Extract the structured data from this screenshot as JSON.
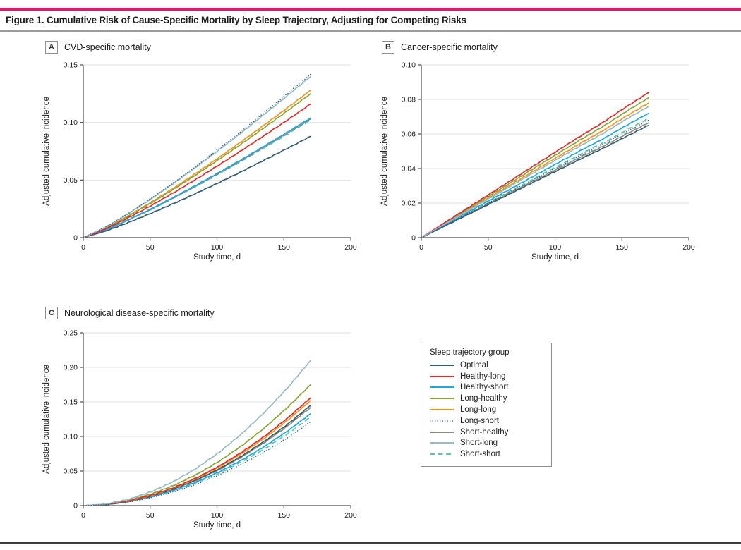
{
  "figure": {
    "title": "Figure 1. Cumulative Risk of Cause-Specific Mortality by Sleep Trajectory, Adjusting for Competing Risks",
    "accent_color": "#e7156e",
    "top_rule_color": "#e7156e",
    "mid_rule_color": "#9b9b9b",
    "bottom_rule_color": "#3c3c3c"
  },
  "legend": {
    "title": "Sleep trajectory group",
    "position": "external box, right of panel C",
    "groups": [
      {
        "key": "optimal",
        "label": "Optimal",
        "color": "#355d70",
        "dash": "solid"
      },
      {
        "key": "healthy_long",
        "label": "Healthy-long",
        "color": "#e42a28",
        "dash": "solid"
      },
      {
        "key": "healthy_short",
        "label": "Healthy-short",
        "color": "#1ea7e2",
        "dash": "solid"
      },
      {
        "key": "long_healthy",
        "label": "Long-healthy",
        "color": "#87a436",
        "dash": "solid"
      },
      {
        "key": "long_long",
        "label": "Long-long",
        "color": "#f6941e",
        "dash": "solid"
      },
      {
        "key": "long_short",
        "label": "Long-short",
        "color": "#2d6390",
        "dash": "dotted"
      },
      {
        "key": "short_healthy",
        "label": "Short-healthy",
        "color": "#8b8b81",
        "dash": "solid"
      },
      {
        "key": "short_long",
        "label": "Short-long",
        "color": "#97bac9",
        "dash": "solid"
      },
      {
        "key": "short_short",
        "label": "Short-short",
        "color": "#5fc7ab",
        "dash": "dashed"
      }
    ]
  },
  "chart_data": [
    {
      "type": "line",
      "panel": "A",
      "title": "CVD-specific mortality",
      "xlabel": "Study time, d",
      "ylabel": "Adjusted cumulative incidence",
      "xlim": [
        0,
        200
      ],
      "ylim": [
        0,
        0.15
      ],
      "xtick_vals": [
        0,
        50,
        100,
        150,
        200
      ],
      "xtick_labels": [
        "0",
        "50",
        "100",
        "150",
        "200"
      ],
      "ytick_vals": [
        0,
        0.05,
        0.1,
        0.15
      ],
      "ytick_labels": [
        "0",
        "0.05",
        "0.10",
        "0.15"
      ],
      "grid": true,
      "x": [
        0,
        17,
        34,
        51,
        68,
        85,
        102,
        119,
        136,
        153,
        170
      ],
      "series": [
        {
          "group": "short_short",
          "values": [
            0,
            0.0067,
            0.0153,
            0.0246,
            0.0346,
            0.045,
            0.0558,
            0.0669,
            0.0784,
            0.0901,
            0.102
          ]
        },
        {
          "group": "short_healthy",
          "values": [
            0,
            0.0068,
            0.0155,
            0.0249,
            0.0349,
            0.0454,
            0.0563,
            0.0676,
            0.0792,
            0.0909,
            0.103
          ]
        },
        {
          "group": "healthy_short",
          "values": [
            0,
            0.0069,
            0.0156,
            0.0251,
            0.0353,
            0.0459,
            0.0569,
            0.0682,
            0.08,
            0.0918,
            0.104
          ]
        },
        {
          "group": "optimal",
          "values": [
            0,
            0.0058,
            0.0132,
            0.0213,
            0.0298,
            0.0388,
            0.0481,
            0.0577,
            0.0677,
            0.0777,
            0.088
          ]
        },
        {
          "group": "long_long",
          "values": [
            0,
            0.0084,
            0.0192,
            0.0309,
            0.0434,
            0.0564,
            0.07,
            0.084,
            0.0984,
            0.113,
            0.128
          ]
        },
        {
          "group": "long_healthy",
          "values": [
            0,
            0.0083,
            0.0188,
            0.0302,
            0.0424,
            0.0551,
            0.0684,
            0.082,
            0.0961,
            0.1104,
            0.125
          ]
        },
        {
          "group": "healthy_long",
          "values": [
            0,
            0.0077,
            0.0174,
            0.028,
            0.0393,
            0.0512,
            0.0635,
            0.0761,
            0.0892,
            0.1024,
            0.116
          ]
        },
        {
          "group": "short_long",
          "values": [
            0,
            0.0092,
            0.021,
            0.0338,
            0.0475,
            0.0617,
            0.0766,
            0.0918,
            0.1077,
            0.1236,
            0.14
          ]
        },
        {
          "group": "long_short",
          "values": [
            0,
            0.0094,
            0.0213,
            0.0343,
            0.0481,
            0.0626,
            0.0777,
            0.0931,
            0.1092,
            0.1254,
            0.142
          ]
        }
      ]
    },
    {
      "type": "line",
      "panel": "B",
      "title": "Cancer-specific mortality",
      "xlabel": "Study time, d",
      "ylabel": "Adjusted cumulative incidence",
      "xlim": [
        0,
        200
      ],
      "ylim": [
        0,
        0.1
      ],
      "xtick_vals": [
        0,
        50,
        100,
        150,
        200
      ],
      "xtick_labels": [
        "0",
        "50",
        "100",
        "150",
        "200"
      ],
      "ytick_vals": [
        0,
        0.02,
        0.04,
        0.06,
        0.08,
        0.1
      ],
      "ytick_labels": [
        "0",
        "0.02",
        "0.04",
        "0.06",
        "0.08",
        "0.10"
      ],
      "grid": true,
      "x": [
        0,
        17,
        34,
        51,
        68,
        85,
        102,
        119,
        136,
        153,
        170
      ],
      "series": [
        {
          "group": "short_short",
          "values": [
            0,
            0.0069,
            0.0138,
            0.0207,
            0.0276,
            0.0345,
            0.0414,
            0.0483,
            0.0549,
            0.0621,
            0.069
          ]
        },
        {
          "group": "short_healthy",
          "values": [
            0,
            0.0066,
            0.0133,
            0.02,
            0.0266,
            0.0333,
            0.0399,
            0.0466,
            0.0529,
            0.0599,
            0.0665
          ]
        },
        {
          "group": "healthy_short",
          "values": [
            0,
            0.0072,
            0.0144,
            0.0216,
            0.0288,
            0.036,
            0.0432,
            0.0504,
            0.0572,
            0.0648,
            0.072
          ]
        },
        {
          "group": "optimal",
          "values": [
            0,
            0.0065,
            0.013,
            0.0195,
            0.026,
            0.0325,
            0.039,
            0.0455,
            0.0517,
            0.0585,
            0.065
          ]
        },
        {
          "group": "long_long",
          "values": [
            0,
            0.0078,
            0.0156,
            0.0234,
            0.0312,
            0.039,
            0.0468,
            0.0546,
            0.062,
            0.0702,
            0.078
          ]
        },
        {
          "group": "long_healthy",
          "values": [
            0,
            0.0081,
            0.0162,
            0.0243,
            0.0324,
            0.0405,
            0.0486,
            0.0567,
            0.0644,
            0.0729,
            0.081
          ]
        },
        {
          "group": "healthy_long",
          "values": [
            0,
            0.0084,
            0.0168,
            0.0252,
            0.0336,
            0.042,
            0.0504,
            0.0588,
            0.0668,
            0.0756,
            0.084
          ]
        },
        {
          "group": "short_long",
          "values": [
            0,
            0.0076,
            0.0152,
            0.0228,
            0.0304,
            0.038,
            0.0456,
            0.0532,
            0.0604,
            0.0684,
            0.076
          ]
        },
        {
          "group": "long_short",
          "values": [
            0,
            0.0068,
            0.0136,
            0.0204,
            0.0272,
            0.034,
            0.0408,
            0.0476,
            0.0541,
            0.0612,
            0.068
          ]
        }
      ]
    },
    {
      "type": "line",
      "panel": "C",
      "title": "Neurological disease-specific mortality",
      "xlabel": "Study time, d",
      "ylabel": "Adjusted cumulative incidence",
      "xlim": [
        0,
        200
      ],
      "ylim": [
        0,
        0.25
      ],
      "xtick_vals": [
        0,
        50,
        100,
        150,
        200
      ],
      "xtick_labels": [
        "0",
        "50",
        "100",
        "150",
        "200"
      ],
      "ytick_vals": [
        0,
        0.05,
        0.1,
        0.15,
        0.2,
        0.25
      ],
      "ytick_labels": [
        "0",
        "0.05",
        "0.10",
        "0.15",
        "0.20",
        "0.25"
      ],
      "grid": true,
      "x": [
        0,
        17,
        34,
        51,
        68,
        85,
        102,
        119,
        136,
        153,
        170
      ],
      "series": [
        {
          "group": "short_short",
          "values": [
            0,
            0.0014,
            0.0055,
            0.0123,
            0.0215,
            0.0332,
            0.0472,
            0.0639,
            0.0828,
            0.1042,
            0.128
          ]
        },
        {
          "group": "short_healthy",
          "values": [
            0,
            0.0016,
            0.0061,
            0.0136,
            0.0239,
            0.0368,
            0.0524,
            0.0709,
            0.0919,
            0.1156,
            0.142
          ]
        },
        {
          "group": "healthy_short",
          "values": [
            0,
            0.0015,
            0.0057,
            0.0128,
            0.0223,
            0.0344,
            0.0491,
            0.0664,
            0.0861,
            0.1083,
            0.133
          ]
        },
        {
          "group": "optimal",
          "values": [
            0,
            0.0016,
            0.0062,
            0.0139,
            0.0244,
            0.0376,
            0.0535,
            0.0724,
            0.0938,
            0.118,
            0.145
          ]
        },
        {
          "group": "long_long",
          "values": [
            0,
            0.0017,
            0.0065,
            0.0146,
            0.0255,
            0.0394,
            0.0561,
            0.0758,
            0.0983,
            0.1237,
            0.152
          ]
        },
        {
          "group": "long_healthy",
          "values": [
            0,
            0.0019,
            0.0075,
            0.0168,
            0.0294,
            0.0453,
            0.0646,
            0.0873,
            0.1132,
            0.1425,
            0.175
          ]
        },
        {
          "group": "healthy_long",
          "values": [
            0,
            0.0017,
            0.0067,
            0.015,
            0.0262,
            0.0404,
            0.0576,
            0.0778,
            0.1009,
            0.127,
            0.156
          ]
        },
        {
          "group": "short_long",
          "values": [
            0,
            0.0023,
            0.009,
            0.0202,
            0.0353,
            0.0544,
            0.0775,
            0.1048,
            0.1359,
            0.1709,
            0.21
          ]
        },
        {
          "group": "long_short",
          "values": [
            0,
            0.0013,
            0.0052,
            0.0116,
            0.0203,
            0.0313,
            0.0447,
            0.0604,
            0.0783,
            0.0985,
            0.121
          ]
        }
      ]
    }
  ]
}
